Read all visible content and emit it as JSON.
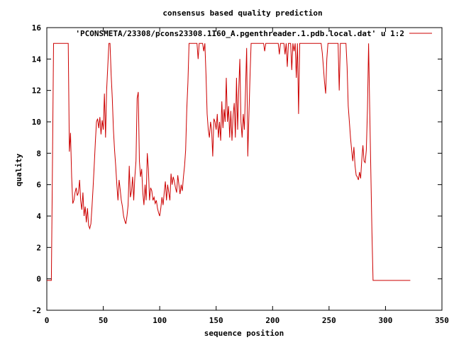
{
  "chart_data": {
    "type": "line",
    "title": "consensus based quality prediction",
    "xlabel": "sequence position",
    "ylabel": "quality",
    "xlim": [
      0,
      350
    ],
    "ylim": [
      -2,
      16
    ],
    "xticks": [
      "0",
      "50",
      "100",
      "150",
      "200",
      "250",
      "300",
      "350"
    ],
    "yticks": [
      "-2",
      "0",
      "2",
      "4",
      "6",
      "8",
      "10",
      "12",
      "14",
      "16"
    ],
    "grid": false,
    "legend_position": "top-right",
    "series": [
      {
        "name": "'PCONSMETA/23308/pcons23308.1I60_A.pgenthreader.1.pdb.local.dat' u 1:2",
        "color": "#cc0000",
        "points": [
          [
            0,
            -0.1
          ],
          [
            4,
            -0.1
          ],
          [
            5,
            7.5
          ],
          [
            6,
            15
          ],
          [
            19,
            15
          ],
          [
            20,
            8.1
          ],
          [
            21,
            9.3
          ],
          [
            22,
            6.5
          ],
          [
            23,
            4.8
          ],
          [
            24,
            5.0
          ],
          [
            25,
            5.5
          ],
          [
            26,
            5.8
          ],
          [
            27,
            5.3
          ],
          [
            28,
            5.5
          ],
          [
            29,
            6.3
          ],
          [
            30,
            5.0
          ],
          [
            31,
            4.4
          ],
          [
            32,
            5.5
          ],
          [
            33,
            4.0
          ],
          [
            34,
            4.6
          ],
          [
            35,
            3.6
          ],
          [
            36,
            4.5
          ],
          [
            37,
            3.4
          ],
          [
            38,
            3.2
          ],
          [
            39,
            3.5
          ],
          [
            40,
            4.6
          ],
          [
            41,
            5.8
          ],
          [
            42,
            7.2
          ],
          [
            43,
            8.7
          ],
          [
            44,
            10.0
          ],
          [
            45,
            10.2
          ],
          [
            46,
            9.6
          ],
          [
            47,
            10.3
          ],
          [
            48,
            9.2
          ],
          [
            49,
            10.1
          ],
          [
            50,
            9.5
          ],
          [
            51,
            11.8
          ],
          [
            52,
            9.0
          ],
          [
            53,
            12.0
          ],
          [
            54,
            13.5
          ],
          [
            55,
            15
          ],
          [
            56,
            15
          ],
          [
            57,
            13.0
          ],
          [
            58,
            11.5
          ],
          [
            59,
            9.5
          ],
          [
            60,
            8.2
          ],
          [
            61,
            7.2
          ],
          [
            62,
            6.0
          ],
          [
            63,
            5.0
          ],
          [
            64,
            6.3
          ],
          [
            65,
            5.7
          ],
          [
            66,
            5.0
          ],
          [
            67,
            4.6
          ],
          [
            68,
            4.0
          ],
          [
            69,
            3.7
          ],
          [
            70,
            3.5
          ],
          [
            71,
            4.0
          ],
          [
            72,
            4.7
          ],
          [
            73,
            7.2
          ],
          [
            74,
            5.2
          ],
          [
            75,
            5.6
          ],
          [
            76,
            6.5
          ],
          [
            77,
            5.0
          ],
          [
            78,
            6.5
          ],
          [
            79,
            7.5
          ],
          [
            80,
            11.5
          ],
          [
            81,
            11.9
          ],
          [
            82,
            7.5
          ],
          [
            83,
            6.5
          ],
          [
            84,
            7.0
          ],
          [
            85,
            5.5
          ],
          [
            86,
            4.7
          ],
          [
            87,
            6.0
          ],
          [
            88,
            5.0
          ],
          [
            89,
            8.0
          ],
          [
            90,
            7.0
          ],
          [
            91,
            5.0
          ],
          [
            92,
            5.8
          ],
          [
            93,
            5.6
          ],
          [
            94,
            5.0
          ],
          [
            95,
            5.2
          ],
          [
            96,
            4.8
          ],
          [
            97,
            5.0
          ],
          [
            98,
            4.5
          ],
          [
            99,
            4.2
          ],
          [
            100,
            4.0
          ],
          [
            101,
            4.5
          ],
          [
            102,
            5.2
          ],
          [
            103,
            4.7
          ],
          [
            104,
            5.5
          ],
          [
            105,
            6.2
          ],
          [
            106,
            5.0
          ],
          [
            107,
            6.0
          ],
          [
            108,
            5.5
          ],
          [
            109,
            5.0
          ],
          [
            110,
            6.7
          ],
          [
            111,
            6.0
          ],
          [
            112,
            6.5
          ],
          [
            113,
            6.2
          ],
          [
            114,
            5.8
          ],
          [
            115,
            5.5
          ],
          [
            116,
            6.6
          ],
          [
            117,
            6.0
          ],
          [
            118,
            5.4
          ],
          [
            119,
            6.0
          ],
          [
            120,
            5.6
          ],
          [
            121,
            6.5
          ],
          [
            122,
            7.2
          ],
          [
            123,
            8.2
          ],
          [
            124,
            10.8
          ],
          [
            125,
            12.5
          ],
          [
            126,
            15
          ],
          [
            133,
            15
          ],
          [
            134,
            14.0
          ],
          [
            135,
            15
          ],
          [
            138,
            15
          ],
          [
            139,
            14.5
          ],
          [
            140,
            15
          ],
          [
            141,
            13.0
          ],
          [
            142,
            10.5
          ],
          [
            143,
            9.5
          ],
          [
            144,
            9.0
          ],
          [
            145,
            10.0
          ],
          [
            146,
            9.5
          ],
          [
            147,
            7.8
          ],
          [
            148,
            10.2
          ],
          [
            149,
            10.0
          ],
          [
            150,
            9.5
          ],
          [
            151,
            10.5
          ],
          [
            152,
            9.0
          ],
          [
            153,
            10.0
          ],
          [
            154,
            8.8
          ],
          [
            155,
            11.3
          ],
          [
            156,
            9.6
          ],
          [
            157,
            10.8
          ],
          [
            158,
            10.0
          ],
          [
            159,
            12.8
          ],
          [
            160,
            10.0
          ],
          [
            161,
            11.0
          ],
          [
            162,
            9.0
          ],
          [
            163,
            10.7
          ],
          [
            164,
            8.8
          ],
          [
            165,
            10.4
          ],
          [
            166,
            11.2
          ],
          [
            167,
            9.0
          ],
          [
            168,
            12.8
          ],
          [
            169,
            9.5
          ],
          [
            170,
            12.0
          ],
          [
            171,
            14.0
          ],
          [
            172,
            10.0
          ],
          [
            173,
            9.0
          ],
          [
            174,
            10.5
          ],
          [
            175,
            9.5
          ],
          [
            176,
            12.0
          ],
          [
            177,
            14.7
          ],
          [
            178,
            7.8
          ],
          [
            179,
            10.4
          ],
          [
            180,
            13.0
          ],
          [
            181,
            15
          ],
          [
            192,
            15
          ],
          [
            193,
            14.5
          ],
          [
            194,
            15
          ],
          [
            205,
            15
          ],
          [
            206,
            14.3
          ],
          [
            207,
            15
          ],
          [
            210,
            15
          ],
          [
            211,
            14.3
          ],
          [
            212,
            15
          ],
          [
            213,
            13.5
          ],
          [
            214,
            15
          ],
          [
            216,
            15
          ],
          [
            217,
            13.3
          ],
          [
            218,
            15
          ],
          [
            219,
            14.5
          ],
          [
            220,
            15
          ],
          [
            221,
            12.8
          ],
          [
            222,
            15
          ],
          [
            223,
            10.5
          ],
          [
            224,
            15
          ],
          [
            243,
            15
          ],
          [
            244,
            14.4
          ],
          [
            245,
            13.5
          ],
          [
            246,
            12.5
          ],
          [
            247,
            11.8
          ],
          [
            248,
            14.0
          ],
          [
            249,
            15
          ],
          [
            258,
            15
          ],
          [
            259,
            12.0
          ],
          [
            260,
            15
          ],
          [
            265,
            15
          ],
          [
            266,
            13.5
          ],
          [
            267,
            11.0
          ],
          [
            268,
            10.0
          ],
          [
            269,
            9.0
          ],
          [
            270,
            8.2
          ],
          [
            271,
            7.5
          ],
          [
            272,
            8.4
          ],
          [
            273,
            7.2
          ],
          [
            274,
            6.6
          ],
          [
            275,
            6.5
          ],
          [
            276,
            6.3
          ],
          [
            277,
            6.8
          ],
          [
            278,
            6.4
          ],
          [
            279,
            7.6
          ],
          [
            280,
            8.5
          ],
          [
            281,
            7.5
          ],
          [
            282,
            7.4
          ],
          [
            283,
            8.2
          ],
          [
            284,
            10.8
          ],
          [
            285,
            15
          ],
          [
            286,
            11.0
          ],
          [
            287,
            7.0
          ],
          [
            288,
            3.0
          ],
          [
            289,
            -0.1
          ],
          [
            322,
            -0.1
          ]
        ]
      }
    ]
  }
}
